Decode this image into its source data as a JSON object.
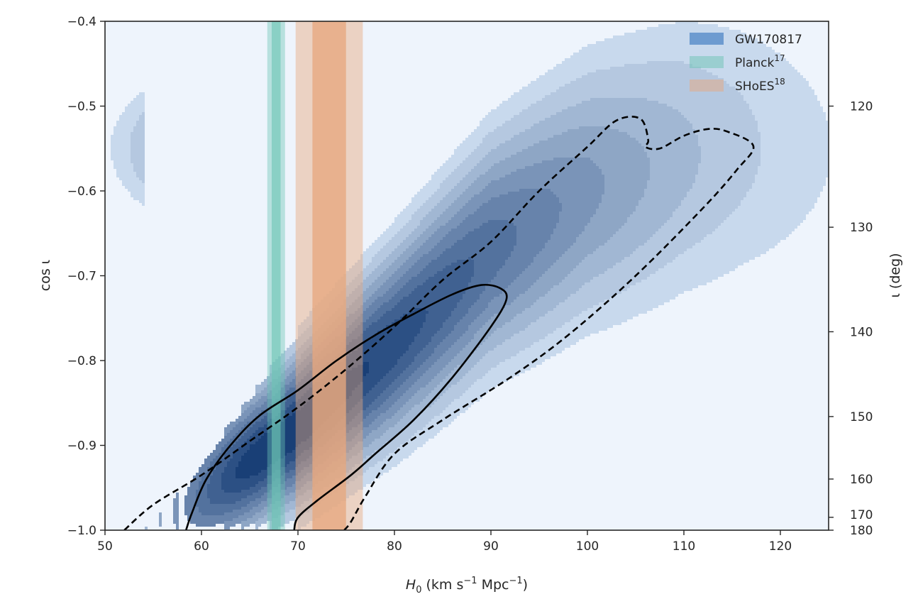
{
  "chart_data": {
    "type": "contour",
    "title": "",
    "xlabel": {
      "base": "H",
      "sub": "0",
      "units_pre": " (km s",
      "exp1": "−1",
      "units_mid": " Mpc",
      "exp2": "−1",
      "units_post": ")"
    },
    "ylabel": "cos ι",
    "y2label": "ι (deg)",
    "xlim": [
      50,
      125
    ],
    "ylim": [
      -1.0,
      -0.4
    ],
    "xticks": [
      "50",
      "60",
      "70",
      "80",
      "90",
      "100",
      "110",
      "120"
    ],
    "yticks": [
      "−1.0",
      "−0.9",
      "−0.8",
      "−0.7",
      "−0.6",
      "−0.5",
      "−0.4"
    ],
    "y2ticks": [
      {
        "deg": 120,
        "label": "120"
      },
      {
        "deg": 130,
        "label": "130"
      },
      {
        "deg": 140,
        "label": "140"
      },
      {
        "deg": 150,
        "label": "150"
      },
      {
        "deg": 160,
        "label": "160"
      },
      {
        "deg": 170,
        "label": "170"
      },
      {
        "deg": 180,
        "label": "180"
      }
    ],
    "grid": false,
    "legend_position": "top-right",
    "background_color": "#eef4fc",
    "colors": {
      "gw": "#4f86c6",
      "planck": "#6cc4b4",
      "shoes": "#e7a87f",
      "contour_dark": "#08306b"
    },
    "series": [
      {
        "name": "GW170817",
        "name_sup": "",
        "kind": "posterior-contours",
        "color_key": "gw"
      },
      {
        "name": "Planck",
        "name_sup": "17",
        "kind": "band",
        "color_key": "planck",
        "center": 67.74,
        "inner": [
          67.28,
          68.2
        ],
        "outer": [
          66.82,
          68.66
        ],
        "inner_opacity": 0.6,
        "outer_opacity": 0.42
      },
      {
        "name": "SHoES",
        "name_sup": "18",
        "kind": "band",
        "color_key": "shoes",
        "center": 73.24,
        "inner": [
          71.5,
          74.98
        ],
        "outer": [
          69.76,
          76.72
        ],
        "inner_opacity": 0.78,
        "outer_opacity": 0.45
      }
    ],
    "posterior": {
      "peak": [
        66.5,
        -0.96
      ],
      "ridge": [
        [
          54,
          -1.0
        ],
        [
          60,
          -0.96
        ],
        [
          70,
          -0.88
        ],
        [
          80,
          -0.78
        ],
        [
          90,
          -0.67
        ],
        [
          100,
          -0.6
        ],
        [
          110,
          -0.56
        ],
        [
          116,
          -0.55
        ]
      ],
      "contour_68": [
        [
          58.4,
          -1.0
        ],
        [
          59,
          -0.98
        ],
        [
          60.5,
          -0.94
        ],
        [
          63,
          -0.9
        ],
        [
          66,
          -0.865
        ],
        [
          70,
          -0.835
        ],
        [
          74,
          -0.8
        ],
        [
          78,
          -0.77
        ],
        [
          82,
          -0.745
        ],
        [
          86,
          -0.722
        ],
        [
          89,
          -0.711
        ],
        [
          91,
          -0.715
        ],
        [
          91.6,
          -0.728
        ],
        [
          90,
          -0.76
        ],
        [
          86,
          -0.82
        ],
        [
          82,
          -0.87
        ],
        [
          78,
          -0.91
        ],
        [
          75.5,
          -0.935
        ],
        [
          72,
          -0.965
        ],
        [
          70,
          -0.985
        ],
        [
          69.6,
          -1.0
        ]
      ],
      "contour_95": [
        [
          52,
          -1.0
        ],
        [
          55,
          -0.97
        ],
        [
          60,
          -0.935
        ],
        [
          65,
          -0.895
        ],
        [
          70,
          -0.855
        ],
        [
          75,
          -0.81
        ],
        [
          80,
          -0.76
        ],
        [
          85,
          -0.705
        ],
        [
          90,
          -0.66
        ],
        [
          95,
          -0.6
        ],
        [
          100,
          -0.548
        ],
        [
          103,
          -0.517
        ],
        [
          105.5,
          -0.515
        ],
        [
          106.3,
          -0.54
        ],
        [
          106,
          -0.548
        ],
        [
          107.5,
          -0.55
        ],
        [
          110,
          -0.535
        ],
        [
          112.5,
          -0.527
        ],
        [
          114.5,
          -0.53
        ],
        [
          117.2,
          -0.547
        ],
        [
          115.5,
          -0.575
        ],
        [
          112,
          -0.62
        ],
        [
          105,
          -0.7
        ],
        [
          98,
          -0.77
        ],
        [
          92,
          -0.82
        ],
        [
          85,
          -0.87
        ],
        [
          80,
          -0.91
        ],
        [
          77,
          -0.96
        ],
        [
          75.5,
          -0.99
        ],
        [
          74.8,
          -1.0
        ]
      ]
    }
  }
}
